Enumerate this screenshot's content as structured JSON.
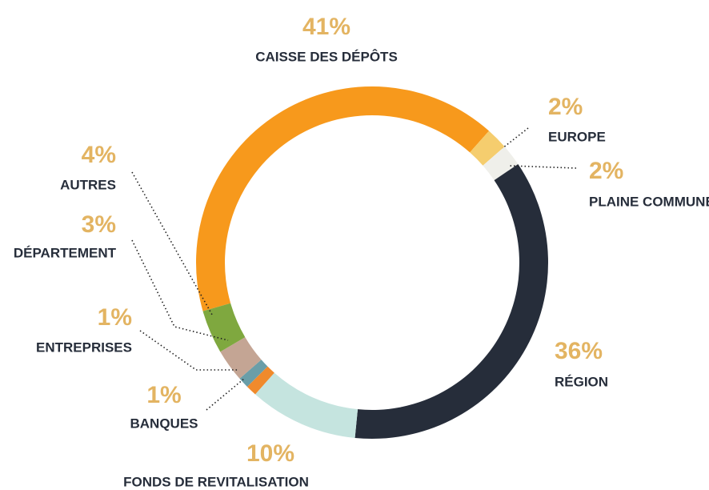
{
  "chart_data": {
    "type": "donut",
    "categories": [
      "CAISSE DES DÉPÔTS",
      "EUROPE",
      "PLAINE COMMUNE",
      "RÉGION",
      "FONDS DE REVITALISATION",
      "BANQUES",
      "ENTREPRISES",
      "DÉPARTEMENT",
      "AUTRES"
    ],
    "values": [
      41,
      2,
      2,
      36,
      10,
      1,
      1,
      3,
      4
    ],
    "value_labels": [
      "41%",
      "2%",
      "2%",
      "36%",
      "10%",
      "1%",
      "1%",
      "3%",
      "4%"
    ],
    "colors": [
      "#f7991c",
      "#f5cd6e",
      "#efefea",
      "#262d3a",
      "#c5e4df",
      "#f08a2c",
      "#6a9ea8",
      "#c4a594",
      "#7fa83f"
    ]
  }
}
